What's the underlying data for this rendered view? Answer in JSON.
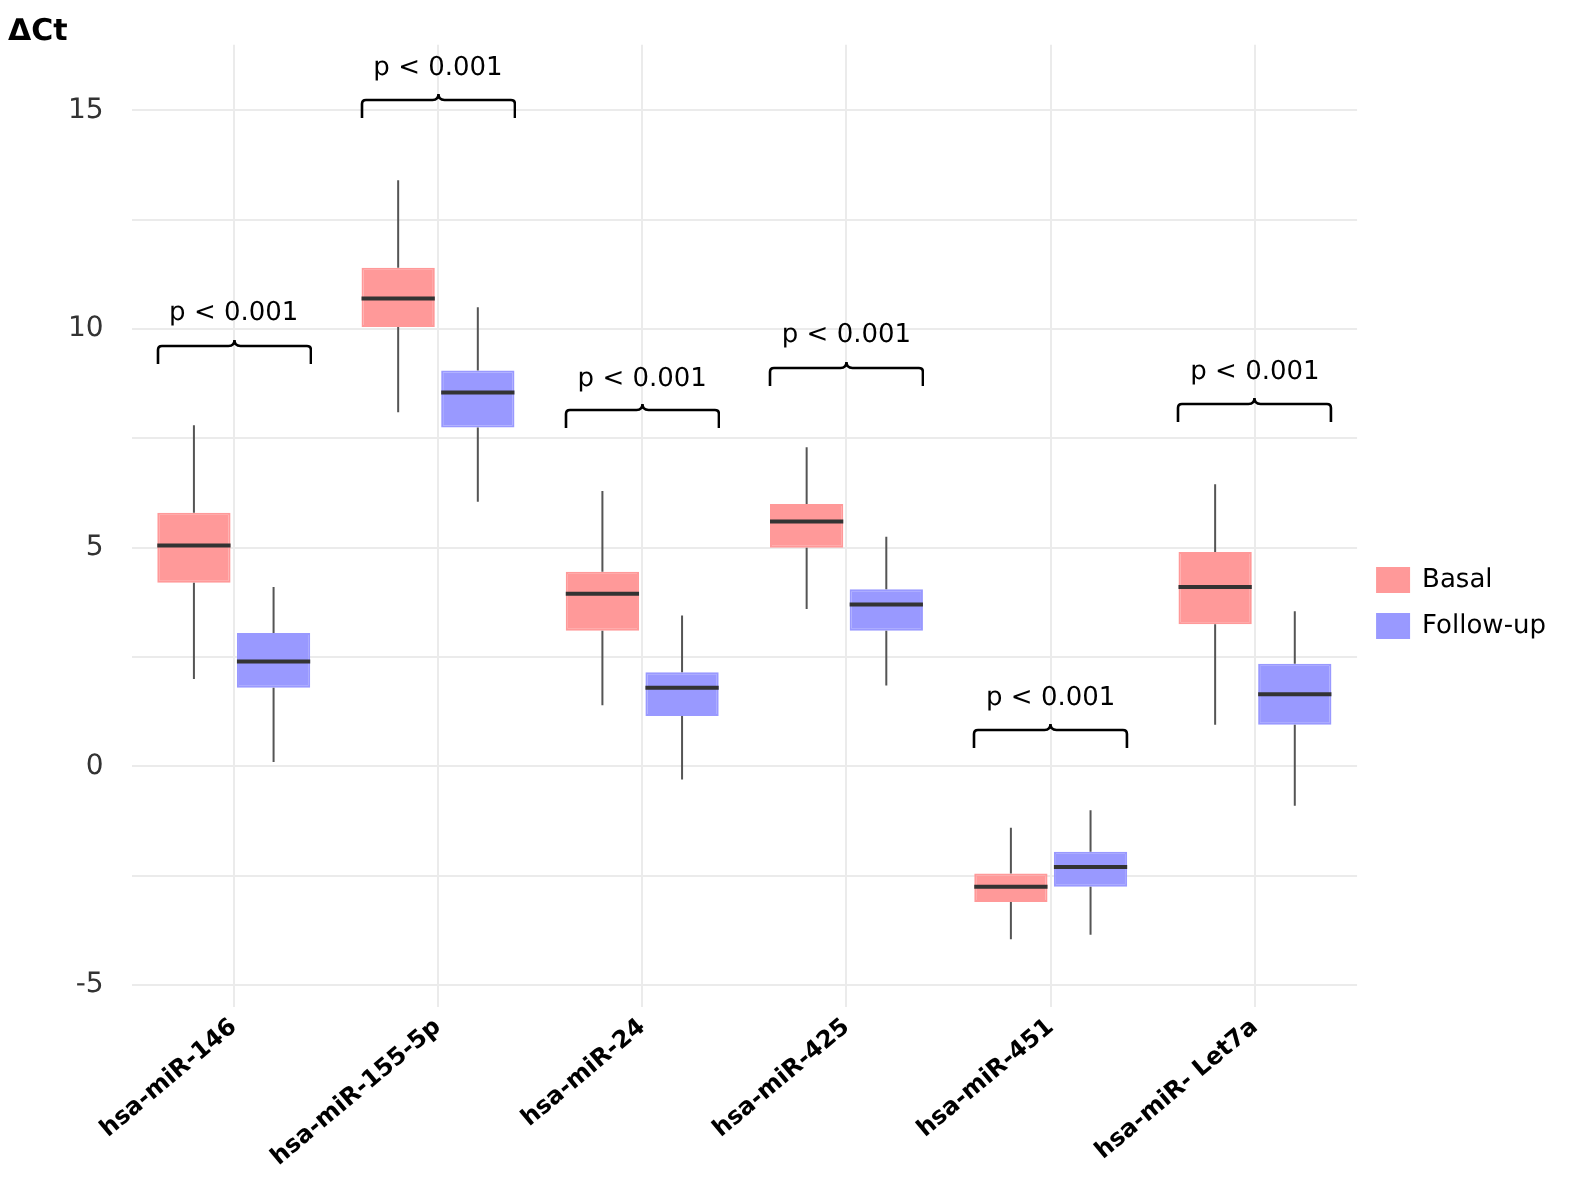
{
  "chart_data": {
    "type": "box",
    "ylabel": "ΔCt",
    "categories": [
      "hsa-miR-146",
      "hsa-miR-155-5p",
      "hsa-miR-24",
      "hsa-miR-425",
      "hsa-miR-451",
      "hsa-miR- Let7a"
    ],
    "series": [
      {
        "name": "Basal",
        "color": "#ff9999",
        "boxes": [
          {
            "low": 2.0,
            "q1": 4.2,
            "median": 5.05,
            "q3": 5.8,
            "high": 7.8
          },
          {
            "low": 8.1,
            "q1": 10.05,
            "median": 10.7,
            "q3": 11.4,
            "high": 13.4
          },
          {
            "low": 1.4,
            "q1": 3.1,
            "median": 3.95,
            "q3": 4.45,
            "high": 6.3
          },
          {
            "low": 3.6,
            "q1": 5.0,
            "median": 5.6,
            "q3": 6.0,
            "high": 7.3
          },
          {
            "low": -3.95,
            "q1": -3.1,
            "median": -2.75,
            "q3": -2.45,
            "high": -1.4
          },
          {
            "low": 0.95,
            "q1": 3.25,
            "median": 4.1,
            "q3": 4.9,
            "high": 6.45
          }
        ]
      },
      {
        "name": "Follow-up",
        "color": "#9999ff",
        "boxes": [
          {
            "low": 0.1,
            "q1": 1.8,
            "median": 2.4,
            "q3": 3.05,
            "high": 4.1
          },
          {
            "low": 6.05,
            "q1": 7.75,
            "median": 8.55,
            "q3": 9.05,
            "high": 10.5
          },
          {
            "low": -0.3,
            "q1": 1.15,
            "median": 1.8,
            "q3": 2.15,
            "high": 3.45
          },
          {
            "low": 1.85,
            "q1": 3.1,
            "median": 3.7,
            "q3": 4.05,
            "high": 5.25
          },
          {
            "low": -3.85,
            "q1": -2.75,
            "median": -2.3,
            "q3": -1.95,
            "high": -1.0
          },
          {
            "low": -0.9,
            "q1": 0.95,
            "median": 1.65,
            "q3": 2.35,
            "high": 3.55
          }
        ]
      }
    ],
    "ylim": [
      -5.5,
      16.5
    ],
    "yticks": [
      -5,
      {
        "value": -2.5,
        "label": null
      },
      0,
      {
        "value": 2.5,
        "label": null
      },
      5,
      {
        "value": 7.5,
        "label": null
      },
      10,
      {
        "value": 12.5,
        "label": null
      },
      15
    ],
    "grid": true,
    "legend": "right",
    "annotations": [
      "p < 0.001",
      "p < 0.001",
      "p < 0.001",
      "p < 0.001",
      "p < 0.001",
      "p < 0.001"
    ]
  }
}
